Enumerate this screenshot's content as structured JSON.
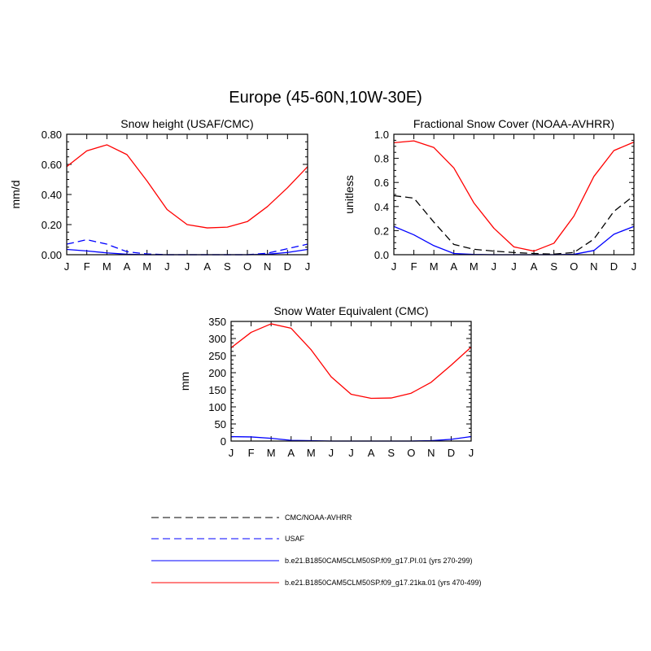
{
  "figure": {
    "title": "Europe (45-60N,10W-30E)"
  },
  "legend": {
    "entries": [
      {
        "label": "CMC/NOAA-AVHRR",
        "color": "#000000",
        "dash": "dashed"
      },
      {
        "label": "USAF",
        "color": "#0000ff",
        "dash": "dashed"
      },
      {
        "label": "b.e21.B1850CAM5CLM50SP.f09_g17.PI.01 (yrs 270-299)",
        "color": "#0000ff",
        "dash": "solid"
      },
      {
        "label": "b.e21.B1850CAM5CLM50SP.f09_g17.21ka.01 (yrs 470-499)",
        "color": "#ff0000",
        "dash": "solid"
      }
    ]
  },
  "chart_data": [
    {
      "type": "line",
      "title": "Snow height (USAF/CMC)",
      "xlabel": "",
      "ylabel": "mm/d",
      "categories": [
        "J",
        "F",
        "M",
        "A",
        "M",
        "J",
        "J",
        "A",
        "S",
        "O",
        "N",
        "D",
        "J"
      ],
      "ylim": [
        0,
        0.8
      ],
      "yticks": [
        0,
        0.2,
        0.4,
        0.6,
        0.8
      ],
      "ytick_labels": [
        "0.00",
        "0.20",
        "0.40",
        "0.60",
        "0.80"
      ],
      "series": [
        {
          "name": "b.e21.B1850CAM5CLM50SP.f09_g17.21ka.01 (yrs 470-499)",
          "color": "#ff0000",
          "dash": "solid",
          "values": [
            0.585,
            0.69,
            0.73,
            0.665,
            0.49,
            0.3,
            0.2,
            0.178,
            0.183,
            0.22,
            0.32,
            0.445,
            0.585
          ]
        },
        {
          "name": "USAF",
          "color": "#0000ff",
          "dash": "dashed",
          "values": [
            0.07,
            0.1,
            0.07,
            0.02,
            0.005,
            0,
            0,
            0,
            0,
            0,
            0.01,
            0.04,
            0.07
          ]
        },
        {
          "name": "b.e21.B1850CAM5CLM50SP.f09_g17.PI.01 (yrs 270-299)",
          "color": "#0000ff",
          "dash": "solid",
          "values": [
            0.035,
            0.025,
            0.012,
            0.003,
            0,
            0,
            0,
            0,
            0,
            0,
            0.003,
            0.015,
            0.035
          ]
        }
      ]
    },
    {
      "type": "line",
      "title": "Fractional Snow Cover (NOAA-AVHRR)",
      "xlabel": "",
      "ylabel": "unitless",
      "categories": [
        "J",
        "F",
        "M",
        "A",
        "M",
        "J",
        "J",
        "A",
        "S",
        "O",
        "N",
        "D",
        "J"
      ],
      "ylim": [
        0,
        1.0
      ],
      "yticks": [
        0,
        0.2,
        0.4,
        0.6,
        0.8,
        1.0
      ],
      "ytick_labels": [
        "0.0",
        "0.2",
        "0.4",
        "0.6",
        "0.8",
        "1.0"
      ],
      "series": [
        {
          "name": "b.e21.B1850CAM5CLM50SP.f09_g17.21ka.01 (yrs 470-499)",
          "color": "#ff0000",
          "dash": "solid",
          "values": [
            0.93,
            0.945,
            0.89,
            0.72,
            0.43,
            0.22,
            0.065,
            0.03,
            0.095,
            0.32,
            0.65,
            0.865,
            0.935
          ]
        },
        {
          "name": "CMC/NOAA-AVHRR",
          "color": "#000000",
          "dash": "dashed",
          "values": [
            0.49,
            0.47,
            0.27,
            0.085,
            0.045,
            0.03,
            0.018,
            0.01,
            0.005,
            0.018,
            0.13,
            0.36,
            0.49
          ]
        },
        {
          "name": "b.e21.B1850CAM5CLM50SP.f09_g17.PI.01 (yrs 270-299)",
          "color": "#0000ff",
          "dash": "solid",
          "values": [
            0.235,
            0.165,
            0.075,
            0.01,
            0.002,
            0,
            0,
            0,
            0,
            0.003,
            0.035,
            0.17,
            0.235
          ]
        }
      ]
    },
    {
      "type": "line",
      "title": "Snow Water Equivalent (CMC)",
      "xlabel": "",
      "ylabel": "mm",
      "categories": [
        "J",
        "F",
        "M",
        "A",
        "M",
        "J",
        "J",
        "A",
        "S",
        "O",
        "N",
        "D",
        "J"
      ],
      "ylim": [
        0,
        350
      ],
      "yticks": [
        0,
        50,
        100,
        150,
        200,
        250,
        300,
        350
      ],
      "ytick_labels": [
        "0",
        "50",
        "100",
        "150",
        "200",
        "250",
        "300",
        "350"
      ],
      "series": [
        {
          "name": "b.e21.B1850CAM5CLM50SP.f09_g17.21ka.01 (yrs 470-499)",
          "color": "#ff0000",
          "dash": "solid",
          "values": [
            273,
            318,
            343,
            330,
            267,
            188,
            137,
            125,
            126,
            140,
            172,
            222,
            275
          ]
        },
        {
          "name": "b.e21.B1850CAM5CLM50SP.f09_g17.PI.01 (yrs 270-299)",
          "color": "#0000ff",
          "dash": "solid",
          "values": [
            13,
            12,
            8,
            2,
            1,
            0,
            0,
            0,
            0,
            0,
            1,
            5,
            13
          ]
        }
      ]
    }
  ]
}
